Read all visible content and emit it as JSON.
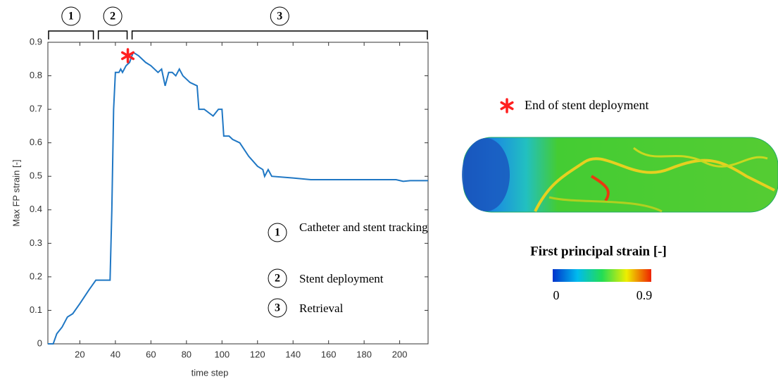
{
  "chart_data": {
    "type": "line",
    "x_label": "time step",
    "y_label": "Max FP strain [-]",
    "color": "#1f77c4",
    "x": [
      2,
      5,
      7,
      10,
      13,
      16,
      20,
      25,
      29,
      32,
      37,
      38,
      39,
      40,
      42,
      43,
      44,
      46,
      48,
      50,
      53,
      57,
      60,
      64,
      66,
      68,
      70,
      72,
      74,
      76,
      78,
      82,
      86,
      87,
      90,
      95,
      98,
      100,
      101,
      104,
      106,
      110,
      115,
      120,
      123,
      124,
      126,
      128,
      140,
      150,
      180,
      198,
      202,
      206,
      216
    ],
    "values": [
      0,
      0,
      0.03,
      0.05,
      0.08,
      0.09,
      0.12,
      0.16,
      0.19,
      0.19,
      0.19,
      0.4,
      0.7,
      0.81,
      0.81,
      0.82,
      0.81,
      0.83,
      0.84,
      0.87,
      0.86,
      0.84,
      0.83,
      0.81,
      0.82,
      0.77,
      0.81,
      0.81,
      0.8,
      0.82,
      0.8,
      0.78,
      0.77,
      0.7,
      0.7,
      0.68,
      0.7,
      0.7,
      0.62,
      0.62,
      0.61,
      0.6,
      0.56,
      0.53,
      0.52,
      0.5,
      0.52,
      0.5,
      0.495,
      0.49,
      0.49,
      0.49,
      0.485,
      0.487,
      0.487
    ],
    "xlim": [
      2,
      216
    ],
    "ylim": [
      0,
      0.9
    ],
    "xticks": [
      20,
      40,
      60,
      80,
      100,
      120,
      140,
      160,
      180,
      200
    ],
    "yticks": [
      0,
      0.1,
      0.2,
      0.3,
      0.4,
      0.5,
      0.6,
      0.7,
      0.8,
      0.9
    ],
    "phases": [
      {
        "label": "1",
        "start": 2,
        "end": 28
      },
      {
        "label": "2",
        "start": 30,
        "end": 47
      },
      {
        "label": "3",
        "start": 49,
        "end": 216
      }
    ],
    "phase_legend": [
      {
        "label": "1",
        "text": "Catheter and stent tracking"
      },
      {
        "label": "2",
        "text": "Stent deployment"
      },
      {
        "label": "3",
        "text": "Retrieval"
      }
    ],
    "marker": {
      "x": 47,
      "y": 0.86,
      "color": "#ff2020",
      "label": "End of stent deployment"
    },
    "colorbar": {
      "title": "First principal strain [-]",
      "range": [
        0,
        0.9
      ]
    }
  }
}
